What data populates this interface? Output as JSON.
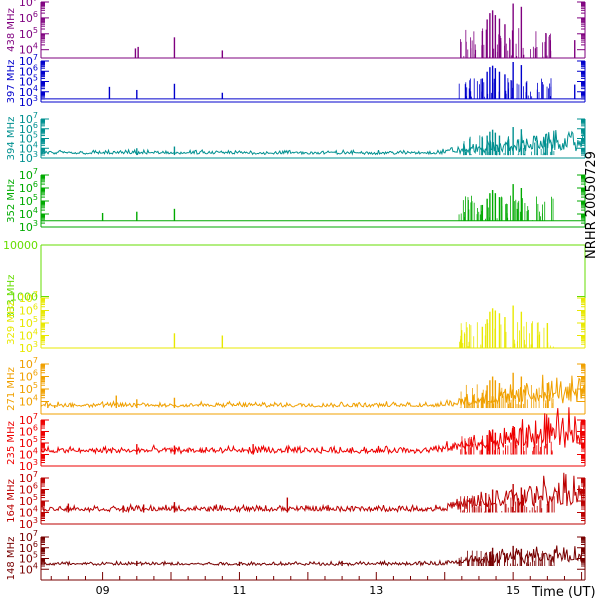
{
  "chart_data": {
    "type": "line",
    "side_title": "NRHR 20050729",
    "xlabel": "Time (UT)",
    "xlim": [
      8.1,
      16.05
    ],
    "x_ticks": [
      {
        "value": 9,
        "label": "09"
      },
      {
        "value": 11,
        "label": "11"
      },
      {
        "value": 13,
        "label": "13"
      },
      {
        "value": 15,
        "label": "15"
      }
    ],
    "panels": [
      {
        "label": "438 MHz",
        "color": "#7f007f",
        "scale": "log",
        "ylim": [
          3000,
          10000000
        ],
        "y_ticks": [
          {
            "exp": 4
          },
          {
            "exp": 5
          },
          {
            "exp": 6
          },
          {
            "exp": 7
          }
        ],
        "baseline": 3000,
        "activity_level": 0.0,
        "spikes": [
          [
            9.48,
            12000
          ],
          [
            9.52,
            15000
          ],
          [
            10.05,
            60000
          ],
          [
            10.75,
            9000
          ],
          [
            14.55,
            150000
          ],
          [
            14.62,
            800000
          ],
          [
            14.66,
            2000000
          ],
          [
            14.7,
            3000000
          ],
          [
            14.74,
            1500000
          ],
          [
            14.8,
            900000
          ],
          [
            14.88,
            400000
          ],
          [
            15.0,
            8000000
          ],
          [
            15.12,
            5000000
          ],
          [
            15.9,
            40000
          ]
        ]
      },
      {
        "label": "397 MHz",
        "color": "#0000cc",
        "scale": "log",
        "ylim": [
          1000,
          10000000
        ],
        "y_ticks": [
          {
            "exp": 3
          },
          {
            "exp": 4
          },
          {
            "exp": 5
          },
          {
            "exp": 6
          },
          {
            "exp": 7
          }
        ],
        "baseline": 2000,
        "activity_level": 0.0,
        "spikes": [
          [
            9.1,
            30000
          ],
          [
            9.5,
            15000
          ],
          [
            10.05,
            60000
          ],
          [
            10.75,
            8000
          ],
          [
            14.55,
            200000
          ],
          [
            14.62,
            900000
          ],
          [
            14.66,
            2500000
          ],
          [
            14.7,
            3500000
          ],
          [
            14.74,
            2000000
          ],
          [
            14.8,
            900000
          ],
          [
            14.88,
            500000
          ],
          [
            15.0,
            8000000
          ],
          [
            15.12,
            4000000
          ],
          [
            15.9,
            50000
          ]
        ]
      },
      {
        "label": "394 MHz",
        "color": "#009090",
        "scale": "log",
        "ylim": [
          1000,
          10000000
        ],
        "y_ticks": [
          {
            "exp": 3
          },
          {
            "exp": 4
          },
          {
            "exp": 5
          },
          {
            "exp": 6
          },
          {
            "exp": 7
          }
        ],
        "baseline": 2000,
        "activity_level": 0.7,
        "spikes": [
          [
            9.5,
            10000
          ],
          [
            10.05,
            15000
          ],
          [
            14.55,
            50000
          ],
          [
            14.62,
            200000
          ],
          [
            14.66,
            500000
          ],
          [
            14.7,
            800000
          ],
          [
            14.74,
            400000
          ],
          [
            14.8,
            200000
          ],
          [
            15.0,
            1500000
          ],
          [
            15.12,
            900000
          ]
        ]
      },
      {
        "label": "352 MHz",
        "color": "#00aa00",
        "scale": "log",
        "ylim": [
          1000,
          10000000
        ],
        "y_ticks": [
          {
            "exp": 3
          },
          {
            "exp": 4
          },
          {
            "exp": 5
          },
          {
            "exp": 6
          },
          {
            "exp": 7
          }
        ],
        "baseline": 3000,
        "activity_level": 0.0,
        "spikes": [
          [
            9.0,
            12000
          ],
          [
            9.5,
            15000
          ],
          [
            10.05,
            25000
          ],
          [
            14.55,
            50000
          ],
          [
            14.62,
            150000
          ],
          [
            14.66,
            400000
          ],
          [
            14.7,
            700000
          ],
          [
            14.74,
            400000
          ],
          [
            14.8,
            200000
          ],
          [
            15.0,
            2000000
          ],
          [
            15.12,
            1000000
          ]
        ]
      },
      {
        "label": "333 MHz",
        "color": "#66dd00",
        "scale": "log",
        "ylim": [
          100,
          10000
        ],
        "y_ticks": [
          {
            "text": "1000",
            "value": 1000
          },
          {
            "text": "10000",
            "value": 10000
          }
        ],
        "baseline": null,
        "activity_level": 0.0,
        "spikes": []
      },
      {
        "label": "329 MHz",
        "color": "#e8e800",
        "scale": "log",
        "ylim": [
          1000,
          10000000
        ],
        "y_ticks": [
          {
            "exp": 3
          },
          {
            "exp": 4
          },
          {
            "exp": 5
          },
          {
            "exp": 6
          },
          {
            "exp": 7
          }
        ],
        "baseline": 1000,
        "activity_level": 0.0,
        "spikes": [
          [
            10.05,
            15000
          ],
          [
            10.75,
            10000
          ],
          [
            14.55,
            50000
          ],
          [
            14.62,
            200000
          ],
          [
            14.66,
            800000
          ],
          [
            14.7,
            1500000
          ],
          [
            14.74,
            1000000
          ],
          [
            14.8,
            600000
          ],
          [
            14.88,
            300000
          ],
          [
            15.0,
            2500000
          ],
          [
            15.12,
            800000
          ],
          [
            15.5,
            100000
          ]
        ]
      },
      {
        "label": "271 MHz",
        "color": "#f0a000",
        "scale": "log",
        "ylim": [
          1000,
          10000000
        ],
        "y_ticks": [
          {
            "exp": 4
          },
          {
            "exp": 5
          },
          {
            "exp": 6
          },
          {
            "exp": 7
          }
        ],
        "baseline": 3000,
        "activity_level": 0.7,
        "spikes": [
          [
            8.2,
            6000
          ],
          [
            8.3,
            5000
          ],
          [
            9.2,
            30000
          ],
          [
            9.5,
            15000
          ],
          [
            10.05,
            20000
          ],
          [
            14.55,
            50000
          ],
          [
            14.62,
            200000
          ],
          [
            14.66,
            500000
          ],
          [
            14.7,
            1000000
          ],
          [
            14.74,
            500000
          ],
          [
            14.8,
            300000
          ],
          [
            15.0,
            2000000
          ],
          [
            15.12,
            1000000
          ],
          [
            15.5,
            300000
          ]
        ]
      },
      {
        "label": "235 MHz",
        "color": "#ee0000",
        "scale": "log",
        "ylim": [
          1000,
          10000000
        ],
        "y_ticks": [
          {
            "exp": 3
          },
          {
            "exp": 4
          },
          {
            "exp": 5
          },
          {
            "exp": 6
          },
          {
            "exp": 7
          }
        ],
        "baseline": 10000,
        "activity_level": 1.0,
        "spikes": [
          [
            9.5,
            80000
          ],
          [
            10.05,
            60000
          ],
          [
            11.2,
            80000
          ],
          [
            14.55,
            200000
          ],
          [
            14.62,
            500000
          ],
          [
            14.66,
            1000000
          ],
          [
            14.7,
            1500000
          ],
          [
            14.74,
            800000
          ],
          [
            15.0,
            3000000
          ],
          [
            15.12,
            1500000
          ]
        ]
      },
      {
        "label": "164 MHz",
        "color": "#bb0000",
        "scale": "log",
        "ylim": [
          1000,
          10000000
        ],
        "y_ticks": [
          {
            "exp": 3
          },
          {
            "exp": 4
          },
          {
            "exp": 5
          },
          {
            "exp": 6
          },
          {
            "exp": 7
          }
        ],
        "baseline": 10000,
        "activity_level": 0.9,
        "spikes": [
          [
            8.5,
            60000
          ],
          [
            9.3,
            40000
          ],
          [
            9.6,
            50000
          ],
          [
            10.05,
            80000
          ],
          [
            11.7,
            200000
          ],
          [
            14.6,
            500000
          ],
          [
            14.7,
            1000000
          ],
          [
            15.0,
            3000000
          ],
          [
            15.12,
            1500000
          ]
        ]
      },
      {
        "label": "148 MHz",
        "color": "#770000",
        "scale": "log",
        "ylim": [
          1000,
          10000000
        ],
        "y_ticks": [
          {
            "exp": 4
          },
          {
            "exp": 5
          },
          {
            "exp": 6
          },
          {
            "exp": 7
          }
        ],
        "baseline": 20000,
        "activity_level": 0.6,
        "spikes": [
          [
            9.5,
            60000
          ],
          [
            11.0,
            50000
          ],
          [
            12.5,
            60000
          ],
          [
            14.66,
            400000
          ],
          [
            14.7,
            1000000
          ],
          [
            15.0,
            1500000
          ],
          [
            15.12,
            800000
          ]
        ]
      }
    ]
  }
}
